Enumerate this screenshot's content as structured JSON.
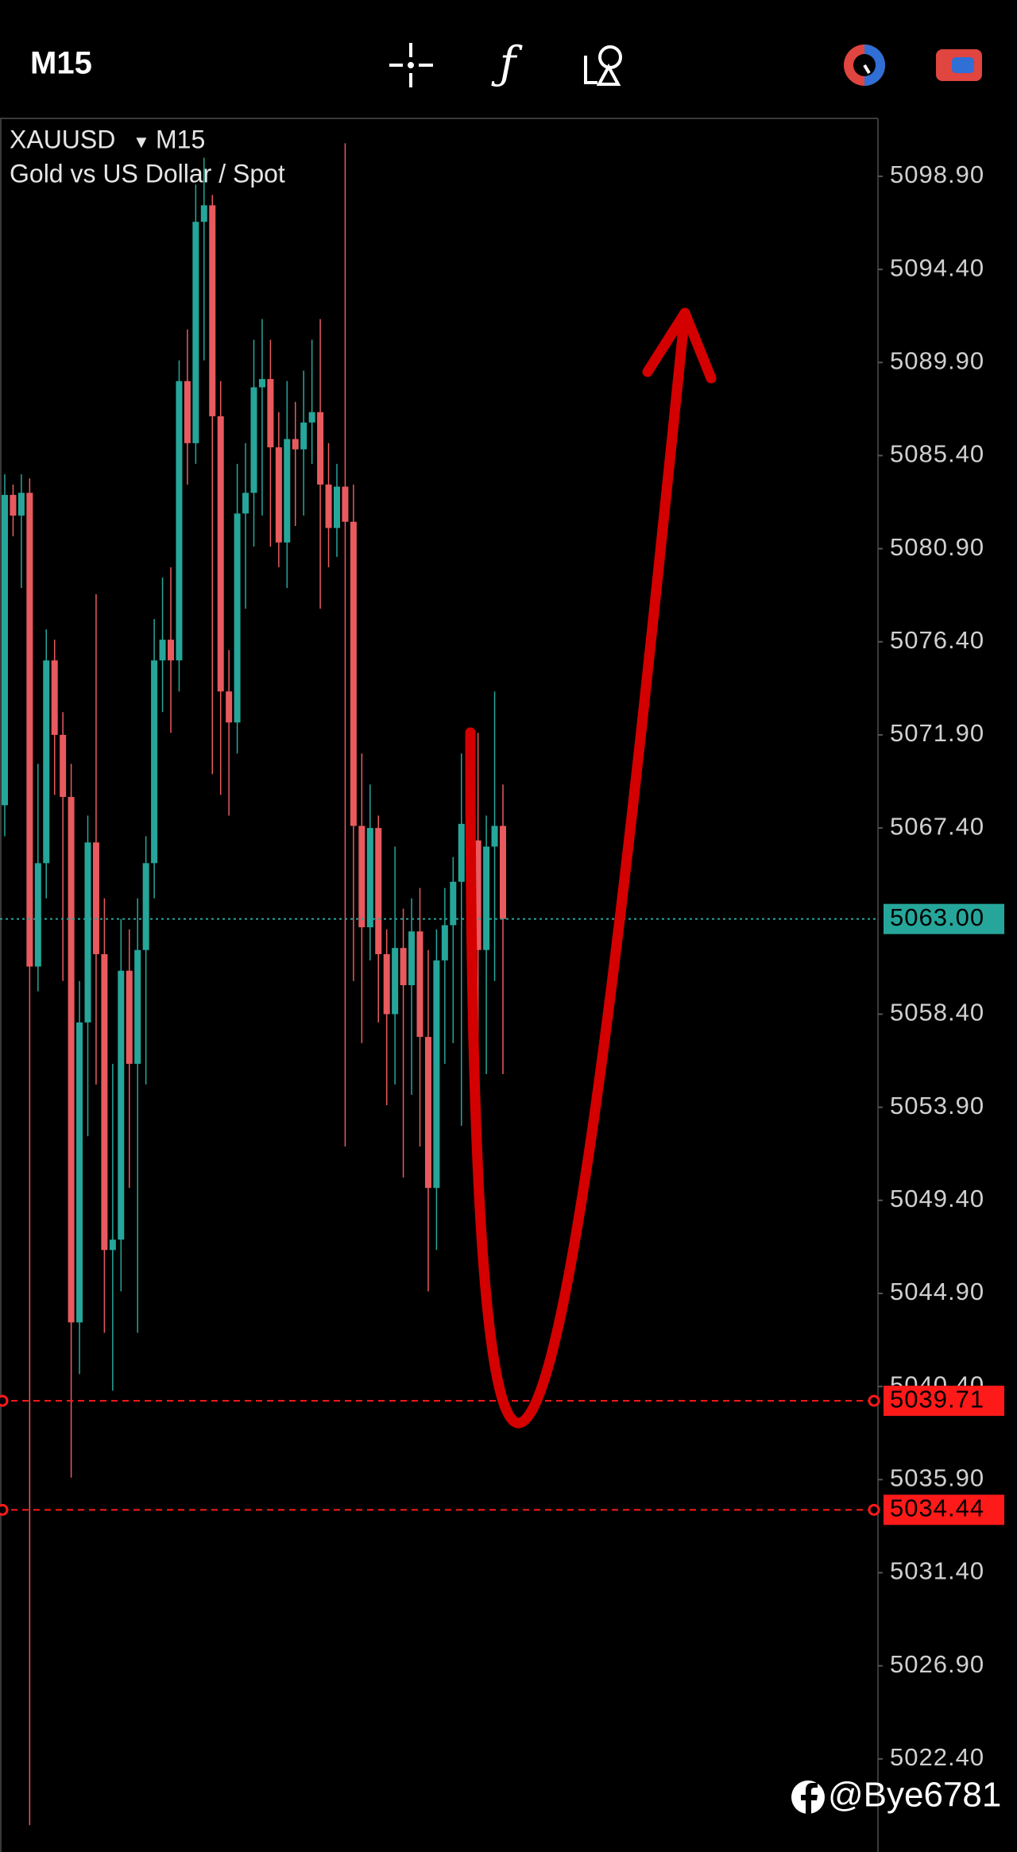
{
  "header": {
    "timeframe": "M15"
  },
  "chart_data": {
    "type": "candlestick",
    "symbol": "XAUUSD",
    "timeframe": "M15",
    "subtitle": "Gold vs US Dollar / Spot",
    "up_color": "#26a69a",
    "down_color": "#e85a5e",
    "open": [
      5068.5,
      5083.5,
      5082.5,
      5083.6,
      5060.7,
      5065.7,
      5075.5,
      5071.9,
      5068.9,
      5043.5,
      5058.0,
      5066.7,
      5061.3,
      5047.0,
      5047.5,
      5060.5,
      5056.0,
      5061.5,
      5065.7,
      5075.5,
      5076.5,
      5075.5,
      5089.0,
      5086.0,
      5096.7,
      5097.5,
      5087.3,
      5074.0,
      5072.5,
      5082.6,
      5083.6,
      5088.7,
      5089.1,
      5085.8,
      5081.2,
      5086.2,
      5085.7,
      5087.0,
      5087.5,
      5084.0,
      5081.9,
      5083.9,
      5082.2,
      5067.5,
      5062.6,
      5067.4,
      5061.3,
      5058.4,
      5061.6,
      5059.8,
      5062.4,
      5057.3,
      5050.0,
      5061.0,
      5062.7,
      5064.8,
      5067.6,
      5066.8,
      5061.5,
      5066.5,
      5067.5
    ],
    "high": [
      5084.5,
      5084.0,
      5084.5,
      5084.3,
      5070.5,
      5077.0,
      5076.5,
      5073.0,
      5070.5,
      5060.0,
      5068.0,
      5078.7,
      5064.0,
      5056.0,
      5063.0,
      5062.5,
      5064.0,
      5067.0,
      5077.5,
      5079.5,
      5080.0,
      5090.0,
      5091.5,
      5098.5,
      5099.8,
      5098.0,
      5089.0,
      5076.0,
      5085.0,
      5086.0,
      5091.0,
      5092.0,
      5091.0,
      5087.5,
      5089.0,
      5088.0,
      5089.5,
      5091.0,
      5092.0,
      5086.0,
      5085.0,
      5100.5,
      5084.0,
      5071.0,
      5069.5,
      5068.0,
      5062.5,
      5066.5,
      5063.5,
      5064.0,
      5064.5,
      5061.5,
      5062.5,
      5064.5,
      5066.0,
      5071.0,
      5070.0,
      5072.0,
      5068.0,
      5074.0,
      5069.5
    ],
    "low": [
      5067.0,
      5081.5,
      5079.0,
      5019.2,
      5059.5,
      5064.0,
      5069.0,
      5060.0,
      5036.0,
      5041.0,
      5052.5,
      5055.0,
      5043.0,
      5040.2,
      5045.0,
      5050.0,
      5043.0,
      5055.0,
      5064.0,
      5073.0,
      5072.0,
      5074.0,
      5084.0,
      5085.0,
      5090.0,
      5070.0,
      5069.0,
      5068.0,
      5071.0,
      5078.0,
      5081.0,
      5082.5,
      5081.0,
      5080.0,
      5079.0,
      5082.0,
      5082.5,
      5085.0,
      5078.0,
      5080.0,
      5080.5,
      5052.0,
      5060.0,
      5057.0,
      5061.0,
      5058.0,
      5054.0,
      5055.0,
      5050.5,
      5054.5,
      5052.0,
      5045.0,
      5047.0,
      5056.0,
      5057.0,
      5053.0,
      5062.0,
      5055.0,
      5055.5,
      5060.0,
      5055.5
    ],
    "close": [
      5083.5,
      5082.5,
      5083.6,
      5060.7,
      5065.7,
      5075.5,
      5071.9,
      5068.9,
      5043.5,
      5058.0,
      5066.7,
      5061.3,
      5047.0,
      5047.5,
      5060.5,
      5056.0,
      5061.5,
      5065.7,
      5075.5,
      5076.5,
      5075.5,
      5089.0,
      5086.0,
      5096.7,
      5097.5,
      5087.3,
      5074.0,
      5072.5,
      5082.6,
      5083.6,
      5088.7,
      5089.1,
      5085.8,
      5081.2,
      5086.2,
      5085.7,
      5087.0,
      5087.5,
      5084.0,
      5081.9,
      5083.9,
      5082.2,
      5067.5,
      5062.6,
      5067.4,
      5061.3,
      5058.4,
      5061.6,
      5059.8,
      5062.4,
      5057.3,
      5050.0,
      5061.0,
      5062.7,
      5064.8,
      5067.6,
      5066.8,
      5061.5,
      5066.5,
      5067.5,
      5063.0
    ],
    "ylim": [
      5017.9,
      5101.7
    ],
    "yticks": [
      {
        "value": 5098.9,
        "label": "5098.90"
      },
      {
        "value": 5094.4,
        "label": "5094.40"
      },
      {
        "value": 5089.9,
        "label": "5089.90"
      },
      {
        "value": 5085.4,
        "label": "5085.40"
      },
      {
        "value": 5080.9,
        "label": "5080.90"
      },
      {
        "value": 5076.4,
        "label": "5076.40"
      },
      {
        "value": 5071.9,
        "label": "5071.90"
      },
      {
        "value": 5067.4,
        "label": "5067.40"
      },
      {
        "value": 5058.4,
        "label": "5058.40"
      },
      {
        "value": 5053.9,
        "label": "5053.90"
      },
      {
        "value": 5049.4,
        "label": "5049.40"
      },
      {
        "value": 5044.9,
        "label": "5044.90"
      },
      {
        "value": 5040.4,
        "label": "5040.40"
      },
      {
        "value": 5035.9,
        "label": "5035.90"
      },
      {
        "value": 5031.4,
        "label": "5031.40"
      },
      {
        "value": 5026.9,
        "label": "5026.90"
      },
      {
        "value": 5022.4,
        "label": "5022.40"
      }
    ],
    "price_line": {
      "value": 5063.0,
      "label": "5063.00",
      "color": "#26a69a"
    },
    "levels": [
      {
        "value": 5039.71,
        "label": "5039.71"
      },
      {
        "value": 5034.44,
        "label": "5034.44"
      }
    ],
    "level_color": "#ff1a1a"
  },
  "watermark": "@Bye6781"
}
